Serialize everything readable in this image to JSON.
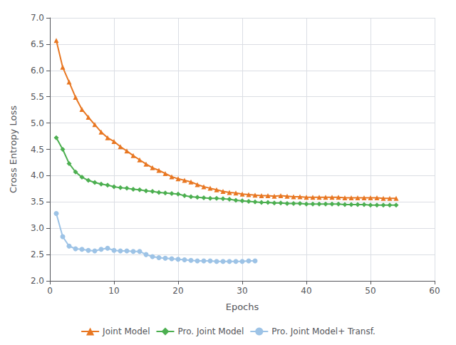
{
  "chart_data": {
    "type": "line",
    "xlabel": "Epochs",
    "ylabel": "Cross Entropy Loss",
    "xlim": [
      0,
      60
    ],
    "ylim": [
      2,
      7
    ],
    "xticks": [
      0,
      10,
      20,
      30,
      40,
      50,
      60
    ],
    "yticks": [
      {
        "value": 2,
        "label": "2.0"
      },
      2.5,
      {
        "value": 3,
        "label": "3.0"
      },
      3.5,
      {
        "value": 4,
        "label": "4.0"
      },
      4.5,
      {
        "value": 5,
        "label": "5.0"
      },
      5.5,
      {
        "value": 6,
        "label": "6.0"
      },
      6.5,
      {
        "value": 7,
        "label": "7.0"
      }
    ],
    "grid": true,
    "legend": "bottom",
    "series": [
      {
        "name": "Joint Model",
        "color": "#E87722",
        "marker": "triangle",
        "x": [
          1,
          2,
          3,
          4,
          5,
          6,
          7,
          8,
          9,
          10,
          11,
          12,
          13,
          14,
          15,
          16,
          17,
          18,
          19,
          20,
          21,
          22,
          23,
          24,
          25,
          26,
          27,
          28,
          29,
          30,
          31,
          32,
          33,
          34,
          35,
          36,
          37,
          38,
          39,
          40,
          41,
          42,
          43,
          44,
          45,
          46,
          47,
          48,
          49,
          50,
          51,
          52,
          53,
          54
        ],
        "values": [
          6.57,
          6.06,
          5.78,
          5.49,
          5.26,
          5.11,
          4.97,
          4.83,
          4.72,
          4.65,
          4.55,
          4.47,
          4.38,
          4.3,
          4.22,
          4.15,
          4.1,
          4.04,
          3.98,
          3.94,
          3.91,
          3.88,
          3.83,
          3.79,
          3.76,
          3.73,
          3.7,
          3.68,
          3.67,
          3.65,
          3.64,
          3.63,
          3.62,
          3.62,
          3.61,
          3.62,
          3.61,
          3.6,
          3.6,
          3.59,
          3.59,
          3.59,
          3.59,
          3.59,
          3.59,
          3.58,
          3.58,
          3.58,
          3.58,
          3.58,
          3.58,
          3.57,
          3.57,
          3.57
        ]
      },
      {
        "name": "Pro. Joint Model",
        "color": "#4CAF50",
        "marker": "diamond",
        "x": [
          1,
          2,
          3,
          4,
          5,
          6,
          7,
          8,
          9,
          10,
          11,
          12,
          13,
          14,
          15,
          16,
          17,
          18,
          19,
          20,
          21,
          22,
          23,
          24,
          25,
          26,
          27,
          28,
          29,
          30,
          31,
          32,
          33,
          34,
          35,
          36,
          37,
          38,
          39,
          40,
          41,
          42,
          43,
          44,
          45,
          46,
          47,
          48,
          49,
          50,
          51,
          52,
          53,
          54
        ],
        "values": [
          4.72,
          4.5,
          4.23,
          4.07,
          3.97,
          3.91,
          3.87,
          3.84,
          3.82,
          3.79,
          3.77,
          3.76,
          3.74,
          3.73,
          3.71,
          3.7,
          3.68,
          3.67,
          3.66,
          3.65,
          3.62,
          3.6,
          3.59,
          3.58,
          3.57,
          3.57,
          3.56,
          3.55,
          3.53,
          3.52,
          3.51,
          3.5,
          3.49,
          3.49,
          3.48,
          3.48,
          3.47,
          3.47,
          3.47,
          3.46,
          3.46,
          3.46,
          3.46,
          3.46,
          3.46,
          3.45,
          3.45,
          3.45,
          3.45,
          3.44,
          3.44,
          3.44,
          3.44,
          3.44
        ]
      },
      {
        "name": "Pro. Joint Model+ Transf.",
        "color": "#9DC3E6",
        "marker": "circle",
        "x": [
          1,
          2,
          3,
          4,
          5,
          6,
          7,
          8,
          9,
          10,
          11,
          12,
          13,
          14,
          15,
          16,
          17,
          18,
          19,
          20,
          21,
          22,
          23,
          24,
          25,
          26,
          27,
          28,
          29,
          30,
          31,
          32
        ],
        "values": [
          3.28,
          2.84,
          2.66,
          2.61,
          2.6,
          2.58,
          2.57,
          2.6,
          2.62,
          2.58,
          2.57,
          2.57,
          2.56,
          2.56,
          2.5,
          2.46,
          2.44,
          2.43,
          2.42,
          2.41,
          2.4,
          2.39,
          2.38,
          2.38,
          2.38,
          2.37,
          2.37,
          2.37,
          2.37,
          2.37,
          2.38,
          2.38
        ]
      }
    ]
  }
}
